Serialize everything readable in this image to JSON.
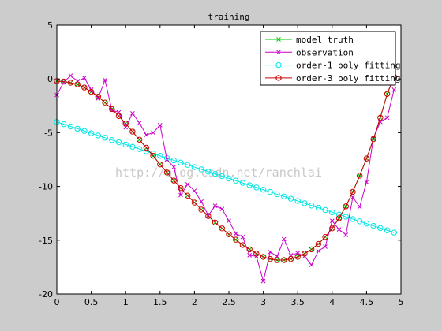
{
  "chart_data": {
    "type": "line",
    "title": "training",
    "xlabel": "",
    "ylabel": "",
    "xlim": [
      0,
      5
    ],
    "ylim": [
      -20,
      5
    ],
    "xticks": [
      "0",
      "0.5",
      "1",
      "1.5",
      "2",
      "2.5",
      "3",
      "3.5",
      "4",
      "4.5",
      "5"
    ],
    "yticks": [
      "5",
      "0",
      "-5",
      "-10",
      "-15",
      "-20"
    ],
    "grid": false,
    "legend_position": "top-right",
    "watermark": "http://blog.csdn.net/ranchlai",
    "x": [
      0,
      0.1,
      0.2,
      0.3,
      0.4,
      0.5,
      0.6,
      0.7,
      0.8,
      0.9,
      1.0,
      1.1,
      1.2,
      1.3,
      1.4,
      1.5,
      1.6,
      1.7,
      1.8,
      1.9,
      2.0,
      2.1,
      2.2,
      2.3,
      2.4,
      2.5,
      2.6,
      2.7,
      2.8,
      2.9,
      3.0,
      3.1,
      3.2,
      3.3,
      3.4,
      3.5,
      3.6,
      3.7,
      3.8,
      3.9,
      4.0,
      4.1,
      4.2,
      4.3,
      4.4,
      4.5,
      4.6,
      4.7,
      4.8,
      4.9
    ],
    "series": [
      {
        "name": "model truth",
        "color": "#00cc00",
        "marker": "x",
        "values": [
          -0.2,
          -0.25,
          -0.35,
          -0.5,
          -0.8,
          -1.2,
          -1.65,
          -2.2,
          -2.8,
          -3.45,
          -4.15,
          -4.9,
          -5.65,
          -6.4,
          -7.15,
          -7.95,
          -8.7,
          -9.45,
          -10.15,
          -10.85,
          -11.5,
          -12.15,
          -12.75,
          -13.35,
          -13.9,
          -14.45,
          -14.95,
          -15.45,
          -15.85,
          -16.25,
          -16.55,
          -16.75,
          -16.85,
          -16.85,
          -16.75,
          -16.55,
          -16.25,
          -15.85,
          -15.35,
          -14.7,
          -13.9,
          -12.95,
          -11.85,
          -10.5,
          -9.0,
          -7.4,
          -5.6,
          -3.6,
          -1.4,
          0.2
        ]
      },
      {
        "name": "observation",
        "color": "#cc00cc",
        "marker": "x",
        "values": [
          -1.5,
          -0.3,
          0.3,
          -0.2,
          0.1,
          -1.0,
          -1.8,
          -0.1,
          -2.9,
          -3.1,
          -4.5,
          -3.2,
          -4.1,
          -5.2,
          -5.0,
          -4.3,
          -7.5,
          -8.2,
          -10.8,
          -9.8,
          -10.4,
          -11.4,
          -12.7,
          -11.8,
          -12.1,
          -13.2,
          -14.4,
          -14.7,
          -16.4,
          -16.5,
          -18.8,
          -16.1,
          -16.5,
          -14.9,
          -16.4,
          -16.2,
          -16.5,
          -17.3,
          -16.0,
          -15.6,
          -13.2,
          -14.0,
          -14.5,
          -11.0,
          -11.9,
          -9.6,
          -5.5,
          -4.0,
          -3.6,
          -1.0
        ]
      },
      {
        "name": "order-1 poly fitting",
        "color": "#00e5e5",
        "marker": "o",
        "values": [
          -4.0,
          -4.21,
          -4.42,
          -4.63,
          -4.84,
          -5.05,
          -5.26,
          -5.47,
          -5.68,
          -5.89,
          -6.1,
          -6.31,
          -6.52,
          -6.73,
          -6.94,
          -7.15,
          -7.36,
          -7.57,
          -7.78,
          -7.99,
          -8.2,
          -8.41,
          -8.62,
          -8.83,
          -9.04,
          -9.25,
          -9.46,
          -9.67,
          -9.88,
          -10.09,
          -10.3,
          -10.51,
          -10.72,
          -10.93,
          -11.14,
          -11.35,
          -11.56,
          -11.77,
          -11.98,
          -12.19,
          -12.4,
          -12.61,
          -12.82,
          -13.03,
          -13.24,
          -13.45,
          -13.66,
          -13.87,
          -14.08,
          -14.29
        ]
      },
      {
        "name": "order-3 poly fitting",
        "color": "#cc0000",
        "marker": "o",
        "values": [
          -0.2,
          -0.25,
          -0.35,
          -0.5,
          -0.8,
          -1.2,
          -1.65,
          -2.2,
          -2.8,
          -3.45,
          -4.15,
          -4.9,
          -5.65,
          -6.4,
          -7.15,
          -7.95,
          -8.7,
          -9.45,
          -10.15,
          -10.85,
          -11.5,
          -12.15,
          -12.75,
          -13.35,
          -13.9,
          -14.45,
          -14.95,
          -15.45,
          -15.85,
          -16.25,
          -16.55,
          -16.75,
          -16.85,
          -16.85,
          -16.75,
          -16.55,
          -16.25,
          -15.85,
          -15.35,
          -14.7,
          -13.9,
          -12.95,
          -11.85,
          -10.5,
          -9.0,
          -7.4,
          -5.6,
          -3.6,
          -1.4,
          0.2
        ]
      }
    ]
  }
}
